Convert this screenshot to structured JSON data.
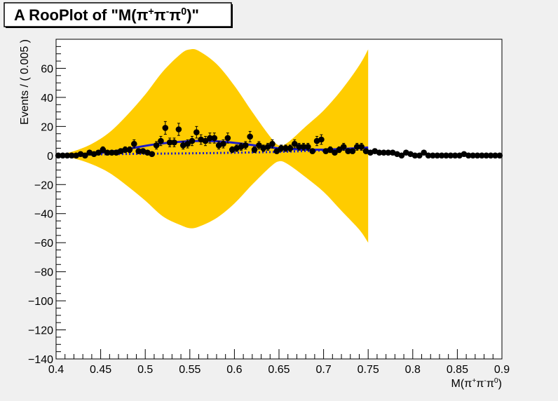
{
  "chart_data": {
    "type": "scatter",
    "title_parts": {
      "main": "A RooPlot of \"M(π",
      "p1": "+",
      "m1": "π",
      "p2": "-",
      "m2": "π",
      "p3": "0",
      "end": ")\""
    },
    "xlabel_parts": {
      "main": "M(π",
      "p1": "+",
      "m1": "π",
      "p2": "-",
      "m2": "π",
      "p3": "0",
      "end": ")"
    },
    "ylabel": "Events / ( 0.005 )",
    "xlim": [
      0.4,
      0.9
    ],
    "ylim": [
      -140,
      80
    ],
    "x_ticks": [
      "0.4",
      "0.45",
      "0.5",
      "0.55",
      "0.6",
      "0.65",
      "0.7",
      "0.75",
      "0.8",
      "0.85",
      "0.9"
    ],
    "y_ticks": [
      "−140",
      "−120",
      "−100",
      "−80",
      "−60",
      "−40",
      "−20",
      "0",
      "20",
      "40",
      "60"
    ],
    "colors": {
      "band": "#ffcc00",
      "solid_curve": "#1a1acc",
      "dotted_curve": "#1a1acc",
      "points": "#000000",
      "frame_bg": "#ffffff"
    },
    "error_band": {
      "name": "",
      "x": [
        0.4,
        0.42,
        0.44,
        0.46,
        0.48,
        0.5,
        0.52,
        0.54,
        0.55,
        0.56,
        0.58,
        0.6,
        0.62,
        0.64,
        0.65,
        0.66,
        0.68,
        0.7,
        0.72,
        0.74,
        0.75
      ],
      "upper": [
        0,
        3,
        8,
        16,
        28,
        42,
        58,
        70,
        73,
        72,
        63,
        48,
        30,
        13,
        7,
        9,
        20,
        31,
        45,
        62,
        73
      ],
      "lower": [
        0,
        -2,
        -6,
        -12,
        -21,
        -31,
        -42,
        -48,
        -50,
        -49,
        -43,
        -33,
        -20,
        -8,
        -4,
        -6,
        -15,
        -25,
        -38,
        -51,
        -60
      ]
    },
    "solid_curve": {
      "x": [
        0.415,
        0.43,
        0.45,
        0.47,
        0.49,
        0.51,
        0.53,
        0.55,
        0.57,
        0.59,
        0.61,
        0.63,
        0.65,
        0.67,
        0.69,
        0.71,
        0.73,
        0.75
      ],
      "y": [
        0.3,
        0.8,
        1.8,
        3.5,
        5.6,
        7.6,
        9.0,
        9.8,
        10.0,
        9.4,
        8.0,
        6.4,
        5.0,
        4.3,
        4.0,
        4.2,
        4.8,
        5.5
      ]
    },
    "dotted_curve": {
      "x": [
        0.415,
        0.45,
        0.5,
        0.55,
        0.6,
        0.65,
        0.7,
        0.75
      ],
      "y": [
        0.2,
        0.8,
        1.2,
        1.5,
        1.9,
        2.5,
        3.5,
        4.5
      ]
    },
    "points": {
      "x": [
        0.4025,
        0.4075,
        0.4125,
        0.4175,
        0.4225,
        0.4275,
        0.4325,
        0.4375,
        0.4425,
        0.4475,
        0.4525,
        0.4575,
        0.4625,
        0.4675,
        0.4725,
        0.4775,
        0.4825,
        0.4875,
        0.4925,
        0.4975,
        0.5025,
        0.5075,
        0.5125,
        0.5175,
        0.5225,
        0.5275,
        0.5325,
        0.5375,
        0.5425,
        0.5475,
        0.5525,
        0.5575,
        0.5625,
        0.5675,
        0.5725,
        0.5775,
        0.5825,
        0.5875,
        0.5925,
        0.5975,
        0.6025,
        0.6075,
        0.6125,
        0.6175,
        0.6225,
        0.6275,
        0.6325,
        0.6375,
        0.6425,
        0.6475,
        0.6525,
        0.6575,
        0.6625,
        0.6675,
        0.6725,
        0.6775,
        0.6825,
        0.6875,
        0.6925,
        0.6975,
        0.7025,
        0.7075,
        0.7125,
        0.7175,
        0.7225,
        0.7275,
        0.7325,
        0.7375,
        0.7425,
        0.7475,
        0.7525,
        0.7575,
        0.7625,
        0.7675,
        0.7725,
        0.7775,
        0.7825,
        0.7875,
        0.7925,
        0.7975,
        0.8025,
        0.8075,
        0.8125,
        0.8175,
        0.8225,
        0.8275,
        0.8325,
        0.8375,
        0.8425,
        0.8475,
        0.8525,
        0.8575,
        0.8625,
        0.8675,
        0.8725,
        0.8775,
        0.8825,
        0.8875,
        0.8925,
        0.8975
      ],
      "y": [
        0,
        0,
        0,
        0,
        0,
        1,
        0,
        2,
        1,
        2,
        4,
        2,
        2,
        2,
        3,
        4,
        4,
        8,
        3,
        3,
        2,
        1,
        7,
        10,
        19,
        9,
        9,
        18,
        7,
        8,
        10,
        16,
        11,
        10,
        12,
        12,
        7,
        8,
        12,
        4,
        5,
        6,
        7,
        13,
        4,
        7,
        5,
        6,
        8,
        3,
        5,
        5,
        5,
        8,
        6,
        6,
        6,
        3,
        10,
        11,
        3,
        4,
        2,
        4,
        6,
        3,
        3,
        6,
        6,
        3,
        2,
        3,
        2,
        2,
        2,
        2,
        1,
        0,
        2,
        1,
        0,
        0,
        2,
        0,
        0,
        0,
        0,
        0,
        0,
        0,
        0,
        1,
        0,
        0,
        0,
        0,
        0,
        0,
        0,
        0
      ],
      "err": [
        0,
        0,
        0,
        0,
        0,
        1,
        0,
        1.4,
        1,
        1.4,
        2,
        1.4,
        1.4,
        1.4,
        1.7,
        2,
        2,
        2.8,
        1.7,
        1.7,
        1.4,
        1,
        2.6,
        3.2,
        4.4,
        3,
        3,
        4.2,
        2.6,
        2.8,
        3.2,
        4,
        3.3,
        3.2,
        3.5,
        3.5,
        2.6,
        2.8,
        3.5,
        2,
        2.2,
        2.4,
        2.6,
        3.6,
        2,
        2.6,
        2.2,
        2.4,
        2.8,
        1.7,
        2.2,
        2.2,
        2.2,
        2.8,
        2.4,
        2.4,
        2.4,
        1.7,
        3.2,
        3.3,
        1.7,
        2,
        1.4,
        2,
        2.4,
        1.7,
        1.7,
        2.4,
        2.4,
        1.7,
        1.4,
        1.7,
        1.4,
        1.4,
        1.4,
        1.4,
        1,
        0,
        1.4,
        1,
        0,
        0,
        1.4,
        0,
        0,
        0,
        0,
        0,
        0,
        0,
        0,
        1,
        0,
        0,
        0,
        0,
        0,
        0,
        0,
        0
      ]
    }
  }
}
